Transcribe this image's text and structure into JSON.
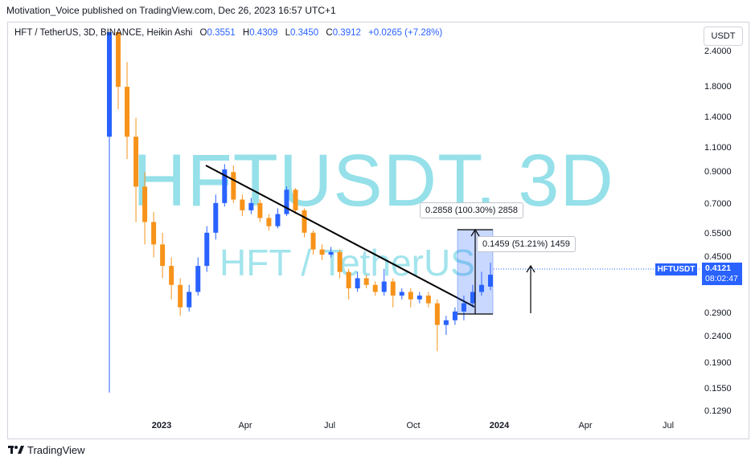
{
  "header": {
    "published_line": "Motivation_Voice published on TradingView.com, Dec 26, 2023 16:57 UTC+1"
  },
  "legend": {
    "symbol": "HFT / TetherUS, 3D, BINANCE, Heikin Ashi",
    "o_label": "O",
    "o_value": "0.3551",
    "h_label": "H",
    "h_value": "0.4309",
    "l_label": "L",
    "l_value": "0.3450",
    "c_label": "C",
    "c_value": "0.3912",
    "change": "+0.0265 (+7.28%)"
  },
  "currency_button": "USDT",
  "watermark": {
    "title": "HFTUSDT, 3D",
    "subtitle": "HFT / TetherUS"
  },
  "last_price": {
    "tag": "HFTUSDT",
    "price": "0.4121",
    "countdown": "08:02:47"
  },
  "measurements": {
    "range_label": "0.2858 (100.30%) 2858",
    "move_label": "0.1459 (51.21%) 1459"
  },
  "footer": {
    "brand": "TradingView"
  },
  "colors": {
    "up": "#2962ff",
    "down": "#f7931a",
    "accent": "#2962ff",
    "watermark": "#83dbe6"
  },
  "chart_data": {
    "type": "candlestick",
    "scale": "log",
    "y_ticks": [
      "2.4000",
      "1.8000",
      "1.4000",
      "1.1000",
      "0.9000",
      "0.7000",
      "0.5500",
      "0.4500",
      "0.2900",
      "0.2400",
      "0.1900",
      "0.1550",
      "0.1290"
    ],
    "x_ticks": [
      "2023",
      "Apr",
      "Jul",
      "Oct",
      "2024",
      "Apr",
      "Jul"
    ],
    "trendline": {
      "from": {
        "date": "2023-02-23",
        "price": 0.95
      },
      "to": {
        "date": "2023-11-28",
        "price": 0.3
      }
    },
    "candles_approx": [
      {
        "t": 0,
        "o": 1.2,
        "c": 3.2,
        "h": 3.3,
        "l": 0.15
      },
      {
        "t": 1,
        "o": 2.9,
        "c": 1.8,
        "h": 3.1,
        "l": 1.5
      },
      {
        "t": 2,
        "o": 1.8,
        "c": 1.2,
        "h": 2.2,
        "l": 1.0
      },
      {
        "t": 3,
        "o": 1.2,
        "c": 0.8,
        "h": 1.4,
        "l": 0.6
      },
      {
        "t": 4,
        "o": 0.8,
        "c": 0.6,
        "h": 0.9,
        "l": 0.5
      },
      {
        "t": 5,
        "o": 0.6,
        "c": 0.5,
        "h": 0.65,
        "l": 0.45
      },
      {
        "t": 6,
        "o": 0.5,
        "c": 0.42,
        "h": 0.55,
        "l": 0.38
      },
      {
        "t": 7,
        "o": 0.42,
        "c": 0.36,
        "h": 0.45,
        "l": 0.32
      },
      {
        "t": 8,
        "o": 0.36,
        "c": 0.3,
        "h": 0.38,
        "l": 0.28
      },
      {
        "t": 9,
        "o": 0.3,
        "c": 0.34,
        "h": 0.36,
        "l": 0.29
      },
      {
        "t": 10,
        "o": 0.34,
        "c": 0.42,
        "h": 0.45,
        "l": 0.33
      },
      {
        "t": 11,
        "o": 0.42,
        "c": 0.55,
        "h": 0.58,
        "l": 0.4
      },
      {
        "t": 12,
        "o": 0.55,
        "c": 0.7,
        "h": 0.75,
        "l": 0.52
      },
      {
        "t": 13,
        "o": 0.7,
        "c": 0.92,
        "h": 0.96,
        "l": 0.68
      },
      {
        "t": 14,
        "o": 0.9,
        "c": 0.72,
        "h": 0.95,
        "l": 0.7
      },
      {
        "t": 15,
        "o": 0.72,
        "c": 0.66,
        "h": 0.75,
        "l": 0.63
      },
      {
        "t": 16,
        "o": 0.66,
        "c": 0.7,
        "h": 0.73,
        "l": 0.64
      },
      {
        "t": 17,
        "o": 0.7,
        "c": 0.62,
        "h": 0.72,
        "l": 0.6
      },
      {
        "t": 18,
        "o": 0.62,
        "c": 0.58,
        "h": 0.64,
        "l": 0.56
      },
      {
        "t": 19,
        "o": 0.58,
        "c": 0.64,
        "h": 0.67,
        "l": 0.57
      },
      {
        "t": 20,
        "o": 0.64,
        "c": 0.78,
        "h": 0.8,
        "l": 0.63
      },
      {
        "t": 21,
        "o": 0.78,
        "c": 0.66,
        "h": 0.79,
        "l": 0.64
      },
      {
        "t": 22,
        "o": 0.66,
        "c": 0.55,
        "h": 0.67,
        "l": 0.53
      },
      {
        "t": 23,
        "o": 0.55,
        "c": 0.48,
        "h": 0.56,
        "l": 0.46
      },
      {
        "t": 24,
        "o": 0.48,
        "c": 0.46,
        "h": 0.5,
        "l": 0.44
      },
      {
        "t": 25,
        "o": 0.46,
        "c": 0.47,
        "h": 0.49,
        "l": 0.45
      },
      {
        "t": 26,
        "o": 0.47,
        "c": 0.4,
        "h": 0.48,
        "l": 0.38
      },
      {
        "t": 27,
        "o": 0.4,
        "c": 0.35,
        "h": 0.41,
        "l": 0.32
      },
      {
        "t": 28,
        "o": 0.35,
        "c": 0.38,
        "h": 0.4,
        "l": 0.34
      },
      {
        "t": 29,
        "o": 0.38,
        "c": 0.36,
        "h": 0.39,
        "l": 0.35
      },
      {
        "t": 30,
        "o": 0.36,
        "c": 0.34,
        "h": 0.37,
        "l": 0.33
      },
      {
        "t": 31,
        "o": 0.34,
        "c": 0.37,
        "h": 0.41,
        "l": 0.33
      },
      {
        "t": 32,
        "o": 0.37,
        "c": 0.33,
        "h": 0.38,
        "l": 0.3
      },
      {
        "t": 33,
        "o": 0.33,
        "c": 0.34,
        "h": 0.35,
        "l": 0.32
      },
      {
        "t": 34,
        "o": 0.34,
        "c": 0.32,
        "h": 0.35,
        "l": 0.3
      },
      {
        "t": 35,
        "o": 0.32,
        "c": 0.33,
        "h": 0.34,
        "l": 0.31
      },
      {
        "t": 36,
        "o": 0.33,
        "c": 0.31,
        "h": 0.34,
        "l": 0.3
      },
      {
        "t": 37,
        "o": 0.31,
        "c": 0.26,
        "h": 0.32,
        "l": 0.21
      },
      {
        "t": 38,
        "o": 0.26,
        "c": 0.27,
        "h": 0.28,
        "l": 0.24
      },
      {
        "t": 39,
        "o": 0.27,
        "c": 0.29,
        "h": 0.3,
        "l": 0.26
      },
      {
        "t": 40,
        "o": 0.29,
        "c": 0.31,
        "h": 0.33,
        "l": 0.27
      },
      {
        "t": 41,
        "o": 0.31,
        "c": 0.34,
        "h": 0.36,
        "l": 0.3
      },
      {
        "t": 42,
        "o": 0.34,
        "c": 0.36,
        "h": 0.4,
        "l": 0.33
      },
      {
        "t": 43,
        "o": 0.355,
        "c": 0.391,
        "h": 0.431,
        "l": 0.345
      }
    ]
  }
}
